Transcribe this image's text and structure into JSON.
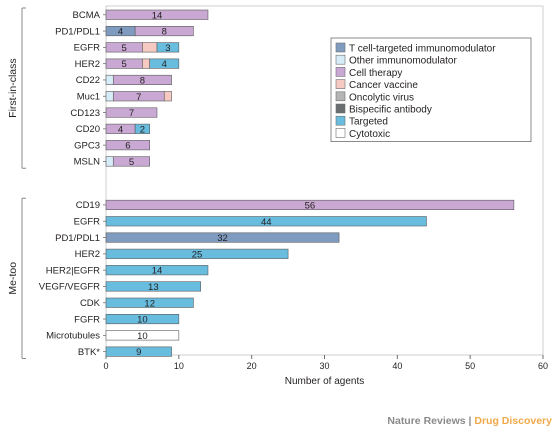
{
  "chart_data": {
    "type": "bar",
    "orientation": "horizontal",
    "stacked": true,
    "xlabel": "Number of agents",
    "xlim": [
      0,
      60
    ],
    "xticks": [
      0,
      10,
      20,
      30,
      40,
      50,
      60
    ],
    "legend_placement": "top-right",
    "legend": [
      {
        "key": "tcell",
        "name": "T cell-targeted immunomodulator",
        "color": "#7f9cc0"
      },
      {
        "key": "other",
        "name": "Other immunomodulator",
        "color": "#d6ecf7"
      },
      {
        "key": "cell",
        "name": "Cell therapy",
        "color": "#c9a9d3"
      },
      {
        "key": "vaccine",
        "name": "Cancer vaccine",
        "color": "#f6c9c3"
      },
      {
        "key": "onco",
        "name": "Oncolytic virus",
        "color": "#b5b5b5"
      },
      {
        "key": "bispecific",
        "name": "Bispecific antibody",
        "color": "#6a6d70"
      },
      {
        "key": "targeted",
        "name": "Targeted",
        "color": "#68bddf"
      },
      {
        "key": "cytotoxic",
        "name": "Cytotoxic",
        "color": "#ffffff"
      }
    ],
    "groups": [
      {
        "label": "First-in-class",
        "rows": [
          {
            "category": "BCMA",
            "segments": [
              {
                "type": "cell",
                "value": 14
              }
            ],
            "labels": [
              {
                "text": "14",
                "at": 7
              }
            ]
          },
          {
            "category": "PD1/PDL1",
            "segments": [
              {
                "type": "tcell",
                "value": 4
              },
              {
                "type": "cell",
                "value": 8
              }
            ],
            "labels": [
              {
                "text": "4",
                "at": 2
              },
              {
                "text": "8",
                "at": 8
              }
            ]
          },
          {
            "category": "EGFR",
            "segments": [
              {
                "type": "cell",
                "value": 5
              },
              {
                "type": "vaccine",
                "value": 2
              },
              {
                "type": "targeted",
                "value": 3
              }
            ],
            "labels": [
              {
                "text": "5",
                "at": 2.5
              },
              {
                "text": "3",
                "at": 8.5
              }
            ]
          },
          {
            "category": "HER2",
            "segments": [
              {
                "type": "cell",
                "value": 5
              },
              {
                "type": "vaccine",
                "value": 1
              },
              {
                "type": "targeted",
                "value": 4
              }
            ],
            "labels": [
              {
                "text": "5",
                "at": 2.5
              },
              {
                "text": "4",
                "at": 8
              }
            ]
          },
          {
            "category": "CD22",
            "segments": [
              {
                "type": "other",
                "value": 1
              },
              {
                "type": "cell",
                "value": 8
              }
            ],
            "labels": [
              {
                "text": "8",
                "at": 5
              }
            ]
          },
          {
            "category": "Muc1",
            "segments": [
              {
                "type": "other",
                "value": 1
              },
              {
                "type": "cell",
                "value": 7
              },
              {
                "type": "vaccine",
                "value": 1
              }
            ],
            "labels": [
              {
                "text": "7",
                "at": 4.5
              }
            ]
          },
          {
            "category": "CD123",
            "segments": [
              {
                "type": "cell",
                "value": 7
              }
            ],
            "labels": [
              {
                "text": "7",
                "at": 3.5
              }
            ]
          },
          {
            "category": "CD20",
            "segments": [
              {
                "type": "cell",
                "value": 4
              },
              {
                "type": "targeted",
                "value": 2
              }
            ],
            "labels": [
              {
                "text": "4",
                "at": 2
              },
              {
                "text": "2",
                "at": 5
              }
            ]
          },
          {
            "category": "GPC3",
            "segments": [
              {
                "type": "cell",
                "value": 6
              }
            ],
            "labels": [
              {
                "text": "6",
                "at": 3
              }
            ]
          },
          {
            "category": "MSLN",
            "segments": [
              {
                "type": "other",
                "value": 1
              },
              {
                "type": "cell",
                "value": 5
              }
            ],
            "labels": [
              {
                "text": "5",
                "at": 3.5
              }
            ]
          }
        ]
      },
      {
        "label": "Me-too",
        "rows": [
          {
            "category": "CD19",
            "segments": [
              {
                "type": "cell",
                "value": 56
              }
            ],
            "labels": [
              {
                "text": "56",
                "at": 28
              }
            ]
          },
          {
            "category": "EGFR",
            "segments": [
              {
                "type": "targeted",
                "value": 44
              }
            ],
            "labels": [
              {
                "text": "44",
                "at": 22
              }
            ]
          },
          {
            "category": "PD1/PDL1",
            "segments": [
              {
                "type": "tcell",
                "value": 32
              }
            ],
            "labels": [
              {
                "text": "32",
                "at": 16
              }
            ]
          },
          {
            "category": "HER2",
            "segments": [
              {
                "type": "targeted",
                "value": 25
              }
            ],
            "labels": [
              {
                "text": "25",
                "at": 12.5
              }
            ]
          },
          {
            "category": "HER2|EGFR",
            "segments": [
              {
                "type": "targeted",
                "value": 14
              }
            ],
            "labels": [
              {
                "text": "14",
                "at": 7
              }
            ]
          },
          {
            "category": "VEGF/VEGFR",
            "segments": [
              {
                "type": "targeted",
                "value": 13
              }
            ],
            "labels": [
              {
                "text": "13",
                "at": 6.5
              }
            ]
          },
          {
            "category": "CDK",
            "segments": [
              {
                "type": "targeted",
                "value": 12
              }
            ],
            "labels": [
              {
                "text": "12",
                "at": 6
              }
            ]
          },
          {
            "category": "FGFR",
            "segments": [
              {
                "type": "targeted",
                "value": 10
              }
            ],
            "labels": [
              {
                "text": "10",
                "at": 5
              }
            ]
          },
          {
            "category": "Microtubules",
            "segments": [
              {
                "type": "cytotoxic",
                "value": 10
              }
            ],
            "labels": [
              {
                "text": "10",
                "at": 5
              }
            ]
          },
          {
            "category": "BTK*",
            "segments": [
              {
                "type": "targeted",
                "value": 9
              }
            ],
            "labels": [
              {
                "text": "9",
                "at": 4.5
              }
            ]
          }
        ]
      }
    ]
  },
  "credit": {
    "journal": "Nature Reviews",
    "separator": " | ",
    "section": "Drug Discovery",
    "journal_color": "#8a8a8a",
    "section_color": "#f0a94a"
  }
}
